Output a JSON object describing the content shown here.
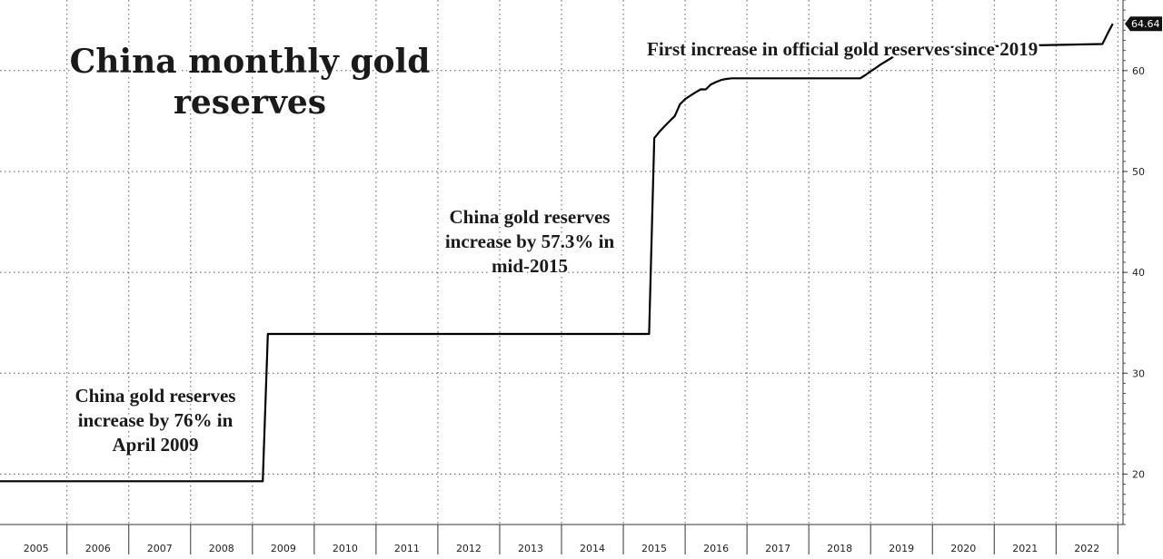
{
  "chart_data": {
    "type": "line",
    "title": "China monthly gold reserves",
    "title_lines": [
      "China monthly gold",
      "reserves"
    ],
    "annotations": [
      {
        "id": "april-2009",
        "lines": [
          "China gold reserves",
          "increase by 76% in",
          "April 2009"
        ]
      },
      {
        "id": "mid-2015",
        "lines": [
          "China gold reserves",
          "increase by 57.3% in",
          "mid-2015"
        ]
      },
      {
        "id": "since-2019",
        "lines": [
          "First increase in official gold reserves since 2019"
        ]
      }
    ],
    "last_value_label": "64.64",
    "x_tick_labels": [
      "2005",
      "2006",
      "2007",
      "2008",
      "2009",
      "2010",
      "2011",
      "2012",
      "2013",
      "2014",
      "2015",
      "2016",
      "2017",
      "2018",
      "2019",
      "2020",
      "2021",
      "2022"
    ],
    "y_tick_labels": [
      "20",
      "30",
      "40",
      "50",
      "60"
    ],
    "ylim": [
      15,
      67
    ],
    "xlim": [
      "2004-12",
      "2023-02"
    ],
    "grid": true,
    "y_axis_position": "right",
    "series": [
      {
        "color": "#000000",
        "points": [
          [
            "2004-12",
            19.29
          ],
          [
            "2009-03",
            19.29
          ],
          [
            "2009-04",
            33.89
          ],
          [
            "2015-06",
            33.89
          ],
          [
            "2015-07",
            53.31
          ],
          [
            "2015-08",
            53.93
          ],
          [
            "2015-09",
            54.49
          ],
          [
            "2015-10",
            55.0
          ],
          [
            "2015-11",
            55.5
          ],
          [
            "2015-12",
            56.66
          ],
          [
            "2016-01",
            57.18
          ],
          [
            "2016-02",
            57.51
          ],
          [
            "2016-03",
            57.84
          ],
          [
            "2016-04",
            58.14
          ],
          [
            "2016-05",
            58.14
          ],
          [
            "2016-06",
            58.62
          ],
          [
            "2016-07",
            58.87
          ],
          [
            "2016-08",
            59.07
          ],
          [
            "2016-09",
            59.17
          ],
          [
            "2016-10",
            59.24
          ],
          [
            "2016-11",
            59.24
          ],
          [
            "2018-11",
            59.24
          ],
          [
            "2018-12",
            59.56
          ],
          [
            "2019-01",
            59.94
          ],
          [
            "2019-02",
            60.26
          ],
          [
            "2019-03",
            60.62
          ],
          [
            "2019-04",
            60.94
          ],
          [
            "2019-05",
            61.24
          ],
          [
            "2019-06",
            61.61
          ],
          [
            "2019-07",
            61.94
          ],
          [
            "2019-08",
            62.19
          ],
          [
            "2019-09",
            62.26
          ],
          [
            "2022-10",
            62.64
          ],
          [
            "2022-11",
            63.67
          ],
          [
            "2022-12",
            64.64
          ]
        ]
      }
    ]
  }
}
